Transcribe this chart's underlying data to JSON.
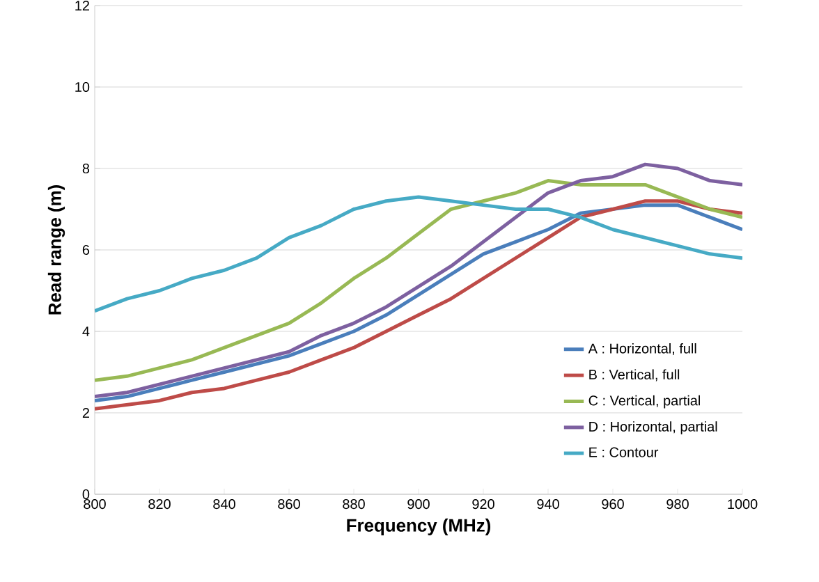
{
  "chart_data": {
    "type": "line",
    "xlabel": "Frequency (MHz)",
    "ylabel": "Read range  (m)",
    "x": [
      800,
      810,
      820,
      830,
      840,
      850,
      860,
      870,
      880,
      890,
      900,
      910,
      920,
      930,
      940,
      950,
      960,
      970,
      980,
      990,
      1000
    ],
    "series": [
      {
        "name": "A : Horizontal, full",
        "color": "#4a7ebb",
        "values": [
          2.3,
          2.4,
          2.6,
          2.8,
          3.0,
          3.2,
          3.4,
          3.7,
          4.0,
          4.4,
          4.9,
          5.4,
          5.9,
          6.2,
          6.5,
          6.9,
          7.0,
          7.1,
          7.1,
          6.8,
          6.5
        ]
      },
      {
        "name": "B : Vertical, full",
        "color": "#be4b48",
        "values": [
          2.1,
          2.2,
          2.3,
          2.5,
          2.6,
          2.8,
          3.0,
          3.3,
          3.6,
          4.0,
          4.4,
          4.8,
          5.3,
          5.8,
          6.3,
          6.8,
          7.0,
          7.2,
          7.2,
          7.0,
          6.9
        ]
      },
      {
        "name": "C : Vertical, partial",
        "color": "#98b954",
        "values": [
          2.8,
          2.9,
          3.1,
          3.3,
          3.6,
          3.9,
          4.2,
          4.7,
          5.3,
          5.8,
          6.4,
          7.0,
          7.2,
          7.4,
          7.7,
          7.6,
          7.6,
          7.6,
          7.3,
          7.0,
          6.8
        ]
      },
      {
        "name": "D : Horizontal, partial",
        "color": "#7d60a0",
        "values": [
          2.4,
          2.5,
          2.7,
          2.9,
          3.1,
          3.3,
          3.5,
          3.9,
          4.2,
          4.6,
          5.1,
          5.6,
          6.2,
          6.8,
          7.4,
          7.7,
          7.8,
          8.1,
          8.0,
          7.7,
          7.6
        ]
      },
      {
        "name": "E : Contour",
        "color": "#46aac5",
        "values": [
          4.5,
          4.8,
          5.0,
          5.3,
          5.5,
          5.8,
          6.3,
          6.6,
          7.0,
          7.2,
          7.3,
          7.2,
          7.1,
          7.0,
          7.0,
          6.8,
          6.5,
          6.3,
          6.1,
          5.9,
          5.8
        ]
      }
    ],
    "xlim": [
      800,
      1000
    ],
    "xticks": [
      800,
      820,
      840,
      860,
      880,
      900,
      920,
      940,
      960,
      980,
      1000
    ],
    "ylim": [
      0,
      12
    ],
    "yticks": [
      0,
      2,
      4,
      6,
      8,
      10,
      12
    ],
    "grid": "y",
    "legend": "right",
    "marker": "none",
    "line_style": "solid"
  }
}
